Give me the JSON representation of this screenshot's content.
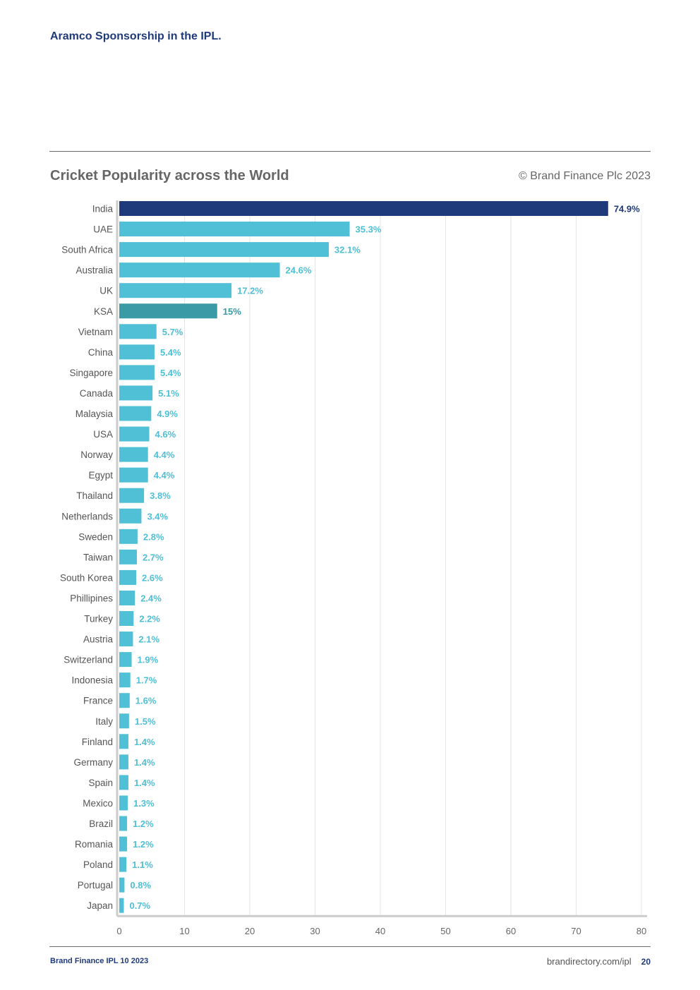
{
  "document": {
    "header": "Aramco Sponsorship in the IPL.",
    "footer_left": "Brand Finance IPL 10 2023",
    "footer_url": "brandirectory.com/ipl",
    "page_number": "20"
  },
  "chart_header": {
    "title": "Cricket Popularity across the World",
    "copyright": "© Brand Finance Plc 2023"
  },
  "colors": {
    "default_bar": "#4fc0d6",
    "india_bar": "#1f3a7a",
    "ksa_bar": "#3a9aa6",
    "grid": "#e6e6e6",
    "axis": "#cccccc"
  },
  "chart_data": {
    "type": "bar",
    "orientation": "horizontal",
    "title": "Cricket Popularity across the World",
    "xlabel": "",
    "ylabel": "",
    "xlim": [
      0,
      80
    ],
    "xticks": [
      0,
      10,
      20,
      30,
      40,
      50,
      60,
      70,
      80
    ],
    "grid": true,
    "categories": [
      "India",
      "UAE",
      "South Africa",
      "Australia",
      "UK",
      "KSA",
      "Vietnam",
      "China",
      "Singapore",
      "Canada",
      "Malaysia",
      "USA",
      "Norway",
      "Egypt",
      "Thailand",
      "Netherlands",
      "Sweden",
      "Taiwan",
      "South Korea",
      "Phillipines",
      "Turkey",
      "Austria",
      "Switzerland",
      "Indonesia",
      "France",
      "Italy",
      "Finland",
      "Germany",
      "Spain",
      "Mexico",
      "Brazil",
      "Romania",
      "Poland",
      "Portugal",
      "Japan"
    ],
    "values": [
      74.9,
      35.3,
      32.1,
      24.6,
      17.2,
      15,
      5.7,
      5.4,
      5.4,
      5.1,
      4.9,
      4.6,
      4.4,
      4.4,
      3.8,
      3.4,
      2.8,
      2.7,
      2.6,
      2.4,
      2.2,
      2.1,
      1.9,
      1.7,
      1.6,
      1.5,
      1.4,
      1.4,
      1.4,
      1.3,
      1.2,
      1.2,
      1.1,
      0.8,
      0.7
    ],
    "value_labels": [
      "74.9%",
      "35.3%",
      "32.1%",
      "24.6%",
      "17.2%",
      "15%",
      "5.7%",
      "5.4%",
      "5.4%",
      "5.1%",
      "4.9%",
      "4.6%",
      "4.4%",
      "4.4%",
      "3.8%",
      "3.4%",
      "2.8%",
      "2.7%",
      "2.6%",
      "2.4%",
      "2.2%",
      "2.1%",
      "1.9%",
      "1.7%",
      "1.6%",
      "1.5%",
      "1.4%",
      "1.4%",
      "1.4%",
      "1.3%",
      "1.2%",
      "1.2%",
      "1.1%",
      "0.8%",
      "0.7%"
    ],
    "highlight": {
      "India": "india_bar",
      "KSA": "ksa_bar"
    }
  }
}
